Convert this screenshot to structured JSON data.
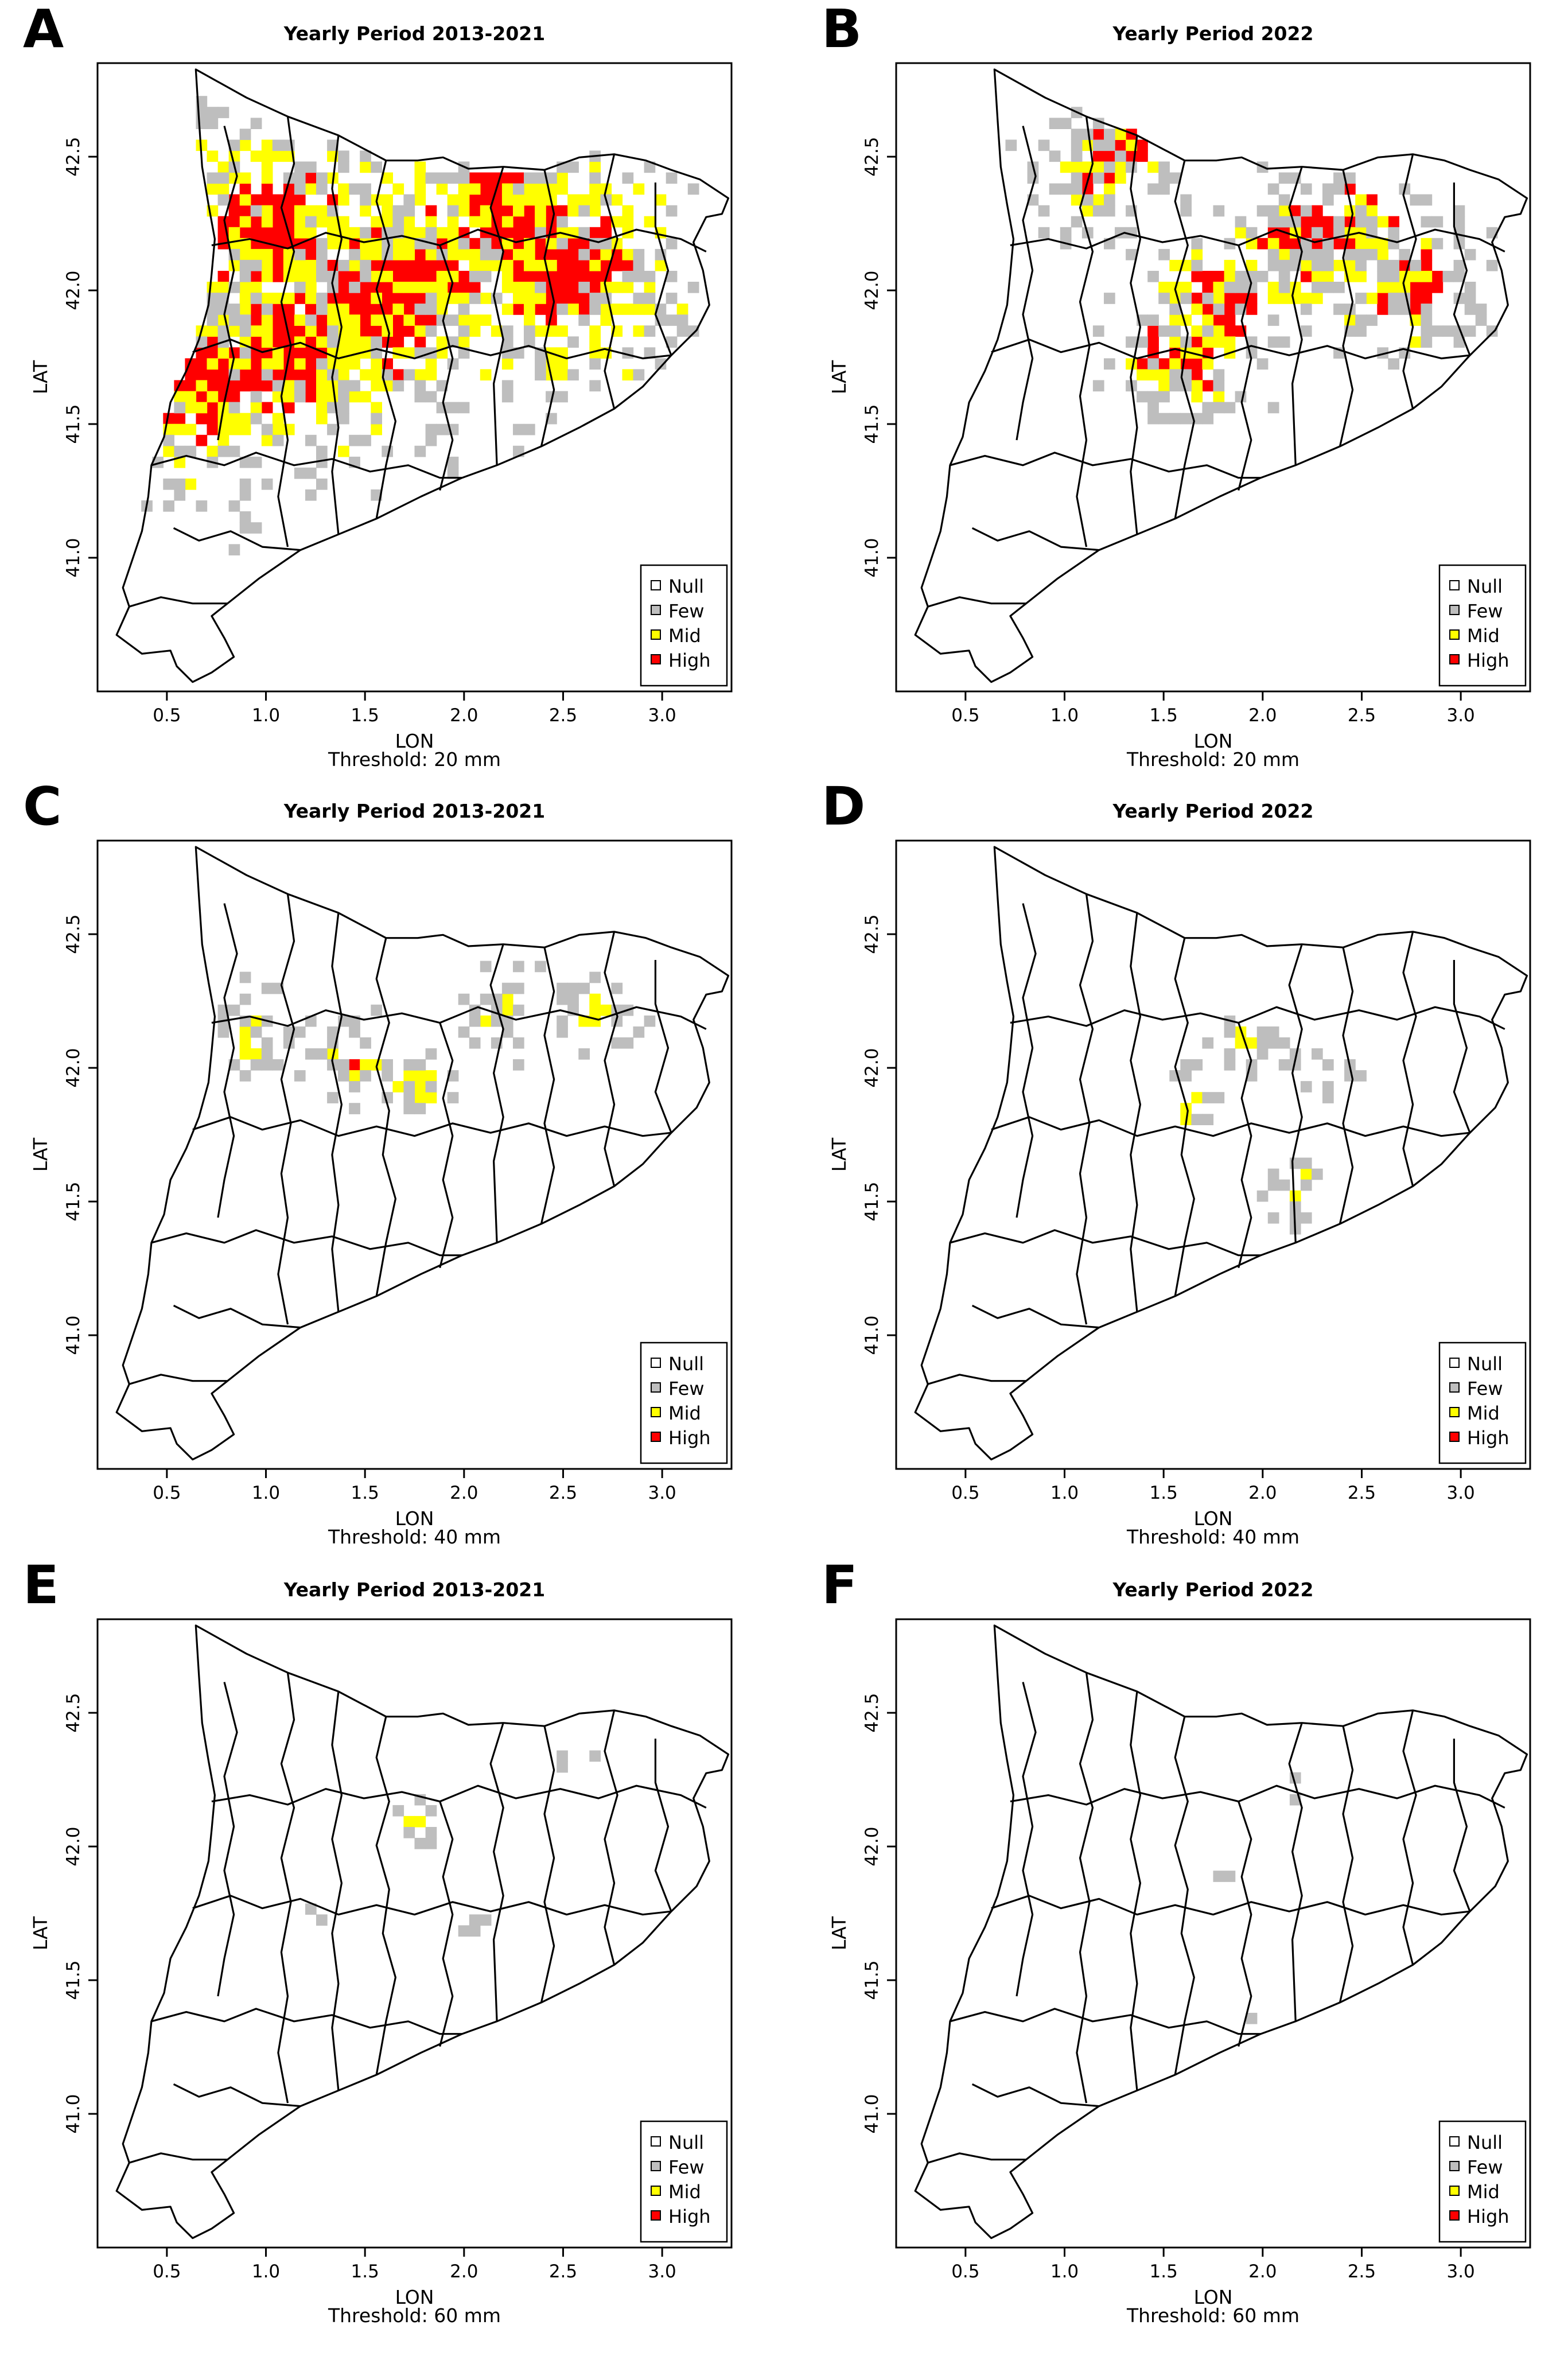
{
  "figure": {
    "colors": {
      "Null": "#ffffff",
      "Few": "#bebebe",
      "Mid": "#ffff00",
      "High": "#ff0000",
      "border": "#000000"
    },
    "legend_labels": [
      "Null",
      "Few",
      "Mid",
      "High"
    ],
    "x_axis_label": "LON",
    "y_axis_label": "LAT",
    "x_ticks": [
      "0.5",
      "1.0",
      "1.5",
      "2.0",
      "2.5",
      "3.0"
    ],
    "y_ticks": [
      "41.0",
      "41.5",
      "42.0",
      "42.5"
    ]
  },
  "panels": [
    {
      "letter": "A",
      "title": "Yearly Period 2013-2021",
      "threshold": "Threshold: 20 mm",
      "class_counts": {
        "Few": 260,
        "Mid": 320,
        "High": 230
      }
    },
    {
      "letter": "B",
      "title": "Yearly Period 2022",
      "threshold": "Threshold: 20 mm",
      "class_counts": {
        "Few": 210,
        "Mid": 90,
        "High": 70
      }
    },
    {
      "letter": "C",
      "title": "Yearly Period 2013-2021",
      "threshold": "Threshold: 40 mm",
      "class_counts": {
        "Few": 90,
        "Mid": 24,
        "High": 1
      }
    },
    {
      "letter": "D",
      "title": "Yearly Period 2022",
      "threshold": "Threshold: 40 mm",
      "class_counts": {
        "Few": 45,
        "Mid": 8,
        "High": 0
      }
    },
    {
      "letter": "E",
      "title": "Yearly Period 2013-2021",
      "threshold": "Threshold: 60 mm",
      "class_counts": {
        "Few": 16,
        "Mid": 2,
        "High": 0
      }
    },
    {
      "letter": "F",
      "title": "Yearly Period 2022",
      "threshold": "Threshold: 60 mm",
      "class_counts": {
        "Few": 5,
        "Mid": 0,
        "High": 0
      }
    }
  ]
}
